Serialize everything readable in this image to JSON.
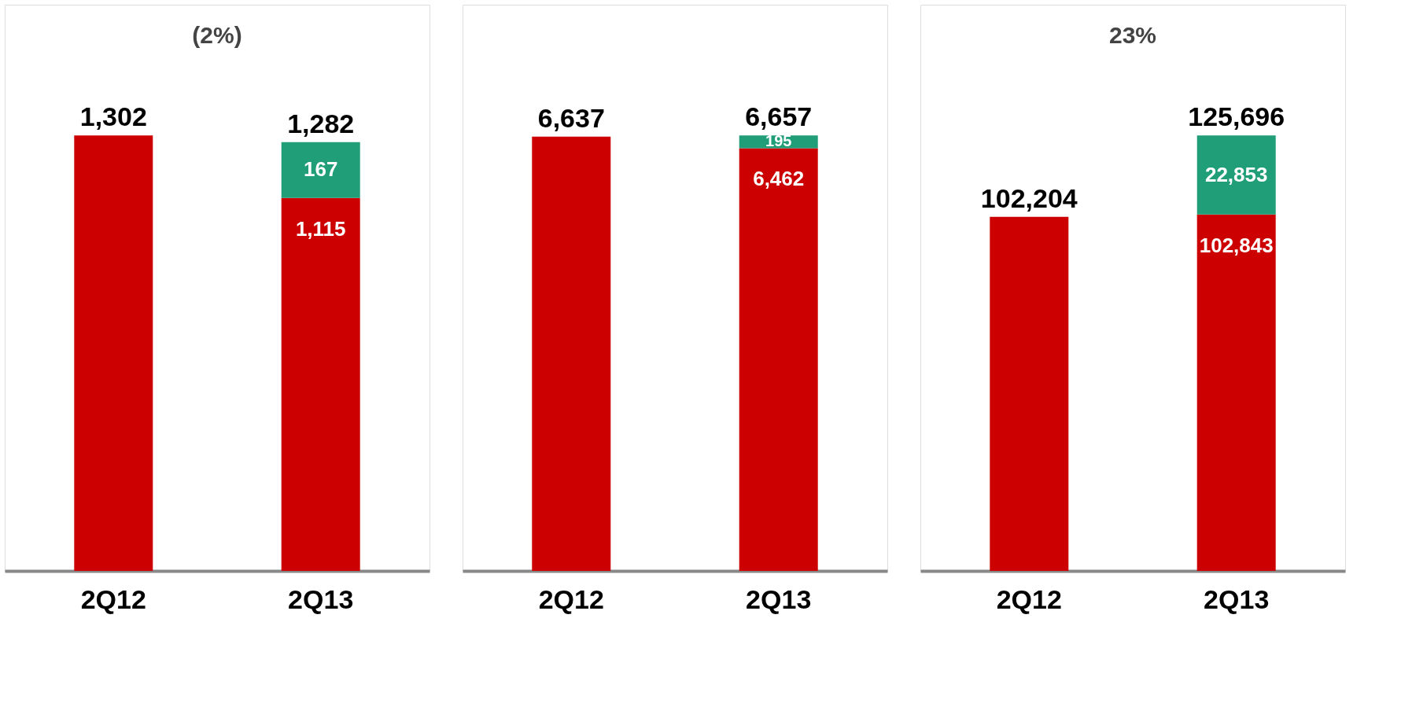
{
  "chart_data": [
    {
      "type": "bar",
      "stacked": true,
      "categories": [
        "2Q12",
        "2Q13"
      ],
      "data_labels": true,
      "annotations": [
        "(2%)"
      ],
      "totals": [
        null,
        "1,282"
      ],
      "series": [
        {
          "color": "#cc0000",
          "values": [
            1302,
            1115
          ],
          "value_labels": [
            "1,302",
            "1,115"
          ]
        },
        {
          "color": "#1f9e78",
          "values": [
            null,
            167
          ],
          "value_labels": [
            null,
            "167"
          ]
        }
      ]
    },
    {
      "type": "bar",
      "stacked": true,
      "categories": [
        "2Q12",
        "2Q13"
      ],
      "data_labels": true,
      "totals": [
        null,
        "6,657"
      ],
      "series": [
        {
          "color": "#cc0000",
          "values": [
            6637,
            6462
          ],
          "value_labels": [
            "6,637",
            "6,462"
          ]
        },
        {
          "color": "#1f9e78",
          "values": [
            null,
            195
          ],
          "value_labels": [
            null,
            "195"
          ]
        }
      ]
    },
    {
      "type": "bar",
      "stacked": true,
      "categories": [
        "2Q12",
        "2Q13"
      ],
      "data_labels": true,
      "annotations": [
        "23%"
      ],
      "totals": [
        null,
        "125,696"
      ],
      "series": [
        {
          "color": "#cc0000",
          "values": [
            102204,
            102843
          ],
          "value_labels": [
            "102,204",
            "102,843"
          ]
        },
        {
          "color": "#1f9e78",
          "values": [
            null,
            22853
          ],
          "value_labels": [
            null,
            "22,853"
          ]
        }
      ]
    }
  ]
}
